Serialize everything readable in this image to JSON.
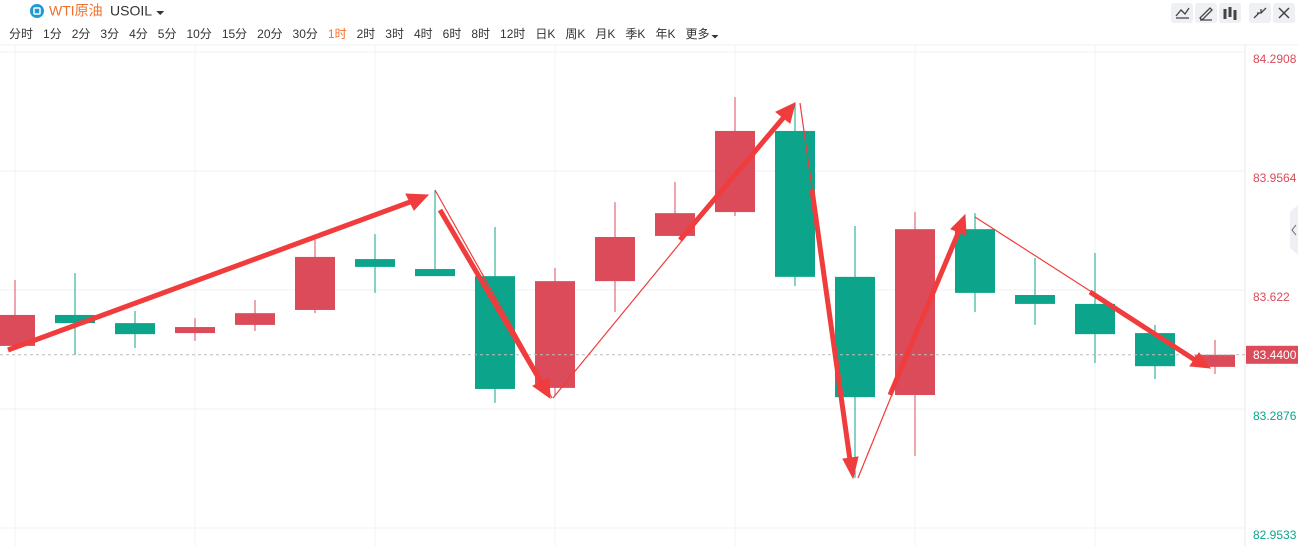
{
  "toolbar": {
    "name": "WTI原油",
    "symbol": "USOIL",
    "periods": [
      "分时",
      "1分",
      "2分",
      "3分",
      "4分",
      "5分",
      "10分",
      "15分",
      "20分",
      "30分",
      "1时",
      "2时",
      "3时",
      "4时",
      "6时",
      "8时",
      "12时",
      "日K",
      "周K",
      "月K",
      "季K",
      "年K",
      "更多"
    ],
    "active_period": "1时"
  },
  "chart_data": {
    "type": "candlestick",
    "open": [
      83.465,
      83.552,
      83.529,
      83.501,
      83.524,
      83.566,
      83.709,
      83.681,
      83.661,
      83.347,
      83.647,
      83.774,
      83.841,
      84.069,
      83.659,
      83.327,
      83.793,
      83.608,
      83.583,
      83.501,
      83.406
    ],
    "high": [
      83.65,
      83.67,
      83.563,
      83.543,
      83.594,
      83.763,
      83.779,
      83.903,
      83.799,
      83.684,
      83.869,
      83.926,
      84.164,
      84.148,
      83.802,
      83.841,
      83.838,
      83.712,
      83.726,
      83.524,
      83.482
    ],
    "low": [
      83.465,
      83.439,
      83.459,
      83.479,
      83.507,
      83.557,
      83.614,
      83.661,
      83.305,
      83.324,
      83.56,
      83.774,
      83.83,
      83.633,
      83.094,
      83.156,
      83.56,
      83.524,
      83.417,
      83.372,
      83.386
    ],
    "close": [
      83.552,
      83.529,
      83.498,
      83.518,
      83.557,
      83.715,
      83.687,
      83.661,
      83.344,
      83.647,
      83.771,
      83.838,
      84.069,
      83.659,
      83.321,
      83.793,
      83.614,
      83.583,
      83.498,
      83.408,
      83.44
    ],
    "up_color": "#dc4b5a",
    "down_color": "#0ca58b",
    "ylim": [
      82.9477,
      84.3105
    ],
    "yticks": [
      84.2908,
      83.9564,
      83.622,
      {
        "value": 83.2876,
        "label": "83.2876"
      },
      82.9533
    ],
    "yticks_fix": null,
    "last_price": {
      "value": 83.44,
      "label": "83.4400"
    },
    "grid": true
  }
}
